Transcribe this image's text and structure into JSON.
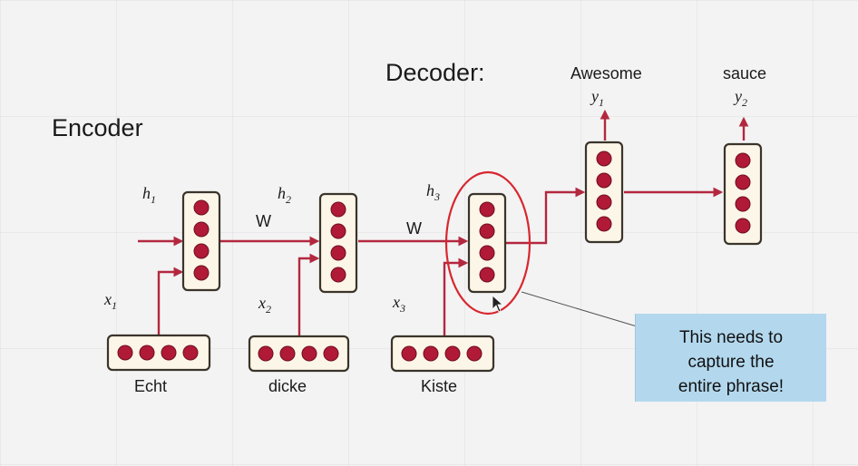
{
  "labels": {
    "encoder": "Encoder",
    "decoder": "Decoder:",
    "w": "W"
  },
  "inputs": [
    {
      "var": "x",
      "sub": "1",
      "word": "Echt"
    },
    {
      "var": "x",
      "sub": "2",
      "word": "dicke"
    },
    {
      "var": "x",
      "sub": "3",
      "word": "Kiste"
    }
  ],
  "hidden": [
    {
      "var": "h",
      "sub": "1"
    },
    {
      "var": "h",
      "sub": "2"
    },
    {
      "var": "h",
      "sub": "3"
    }
  ],
  "outputs": [
    {
      "var": "y",
      "sub": "1",
      "word": "Awesome"
    },
    {
      "var": "y",
      "sub": "2",
      "word": "sauce"
    }
  ],
  "callout": {
    "line1": "This needs to",
    "line2": "capture the",
    "line3": "entire phrase!"
  },
  "colors": {
    "neuron": "#b01a37",
    "arrow": "#b3283f",
    "highlight": "#d9262f",
    "callout_bg": "#b3d8ee"
  }
}
